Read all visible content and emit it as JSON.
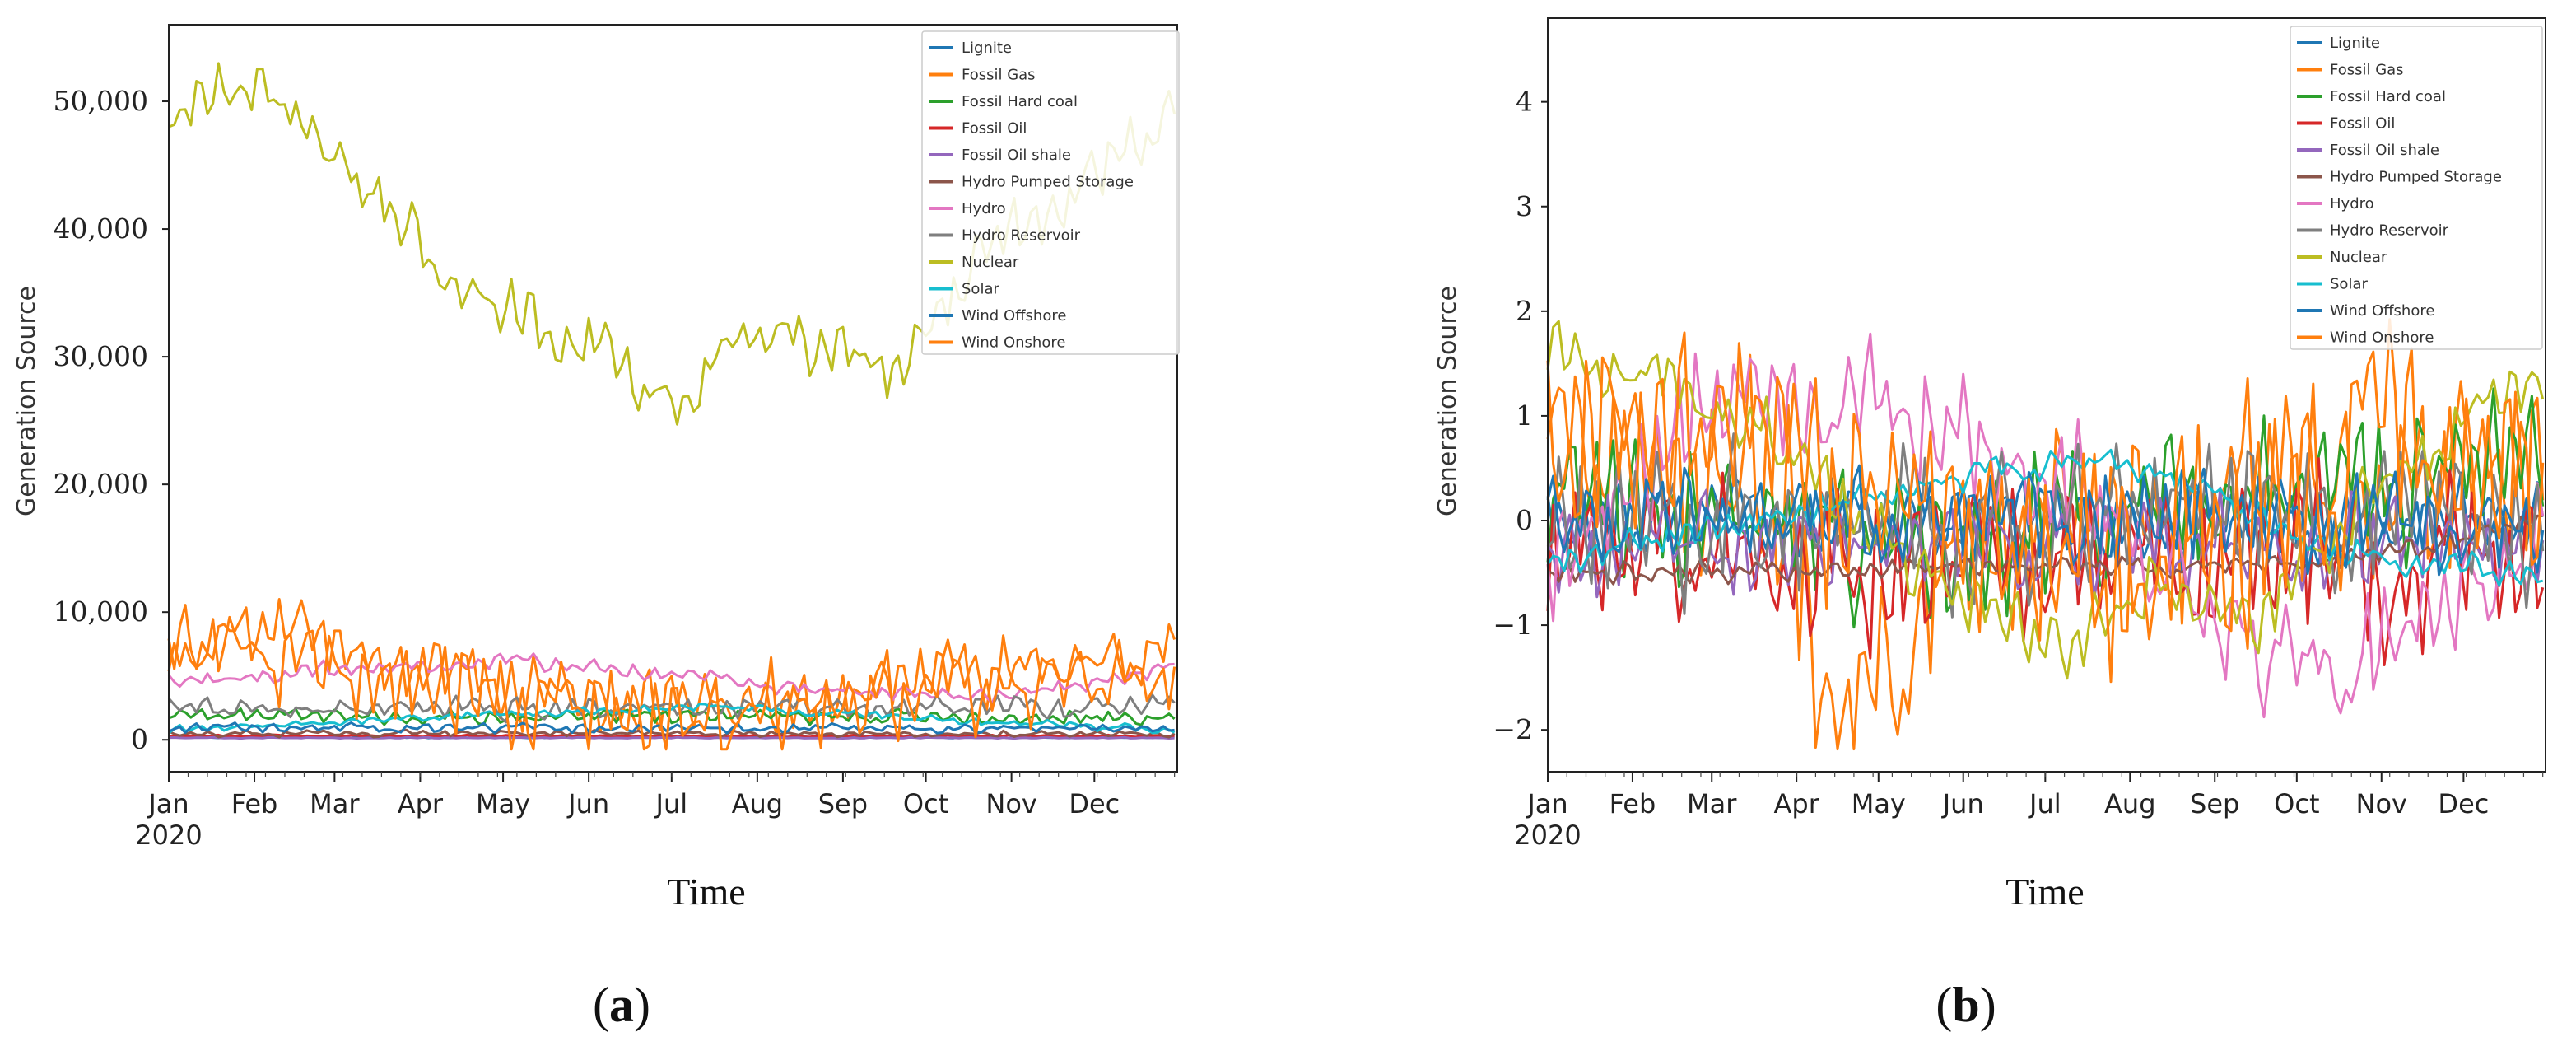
{
  "figure": {
    "panels": [
      {
        "caption_open": "(",
        "caption_letter": "a",
        "caption_close": ")"
      },
      {
        "caption_open": "(",
        "caption_letter": "b",
        "caption_close": ")"
      }
    ]
  },
  "chart_data": [
    {
      "type": "line",
      "panel": "a",
      "title": "",
      "xlabel": "Time",
      "ylabel": "Generation Source",
      "x_ticks": [
        "Jan\n2020",
        "Feb",
        "Mar",
        "Apr",
        "May",
        "Jun",
        "Jul",
        "Aug",
        "Sep",
        "Oct",
        "Nov",
        "Dec"
      ],
      "y_ticks": [
        "0",
        "10,000",
        "20,000",
        "30,000",
        "40,000",
        "50,000"
      ],
      "y_tick_values": [
        0,
        10000,
        20000,
        30000,
        40000,
        50000
      ],
      "xlim": [
        1,
        366
      ],
      "ylim": [
        -2500,
        56000
      ],
      "legend_position": "top-right",
      "series": [
        {
          "name": "Lignite",
          "color": "#1f77b4",
          "base": 200,
          "amp": 60,
          "seed": 1,
          "anchors": []
        },
        {
          "name": "Fossil Gas",
          "color": "#ff7f0e",
          "base": 6000,
          "amp": 2800,
          "seed": 2,
          "anchors": [
            [
              1,
              7500
            ],
            [
              40,
              8500
            ],
            [
              80,
              6000
            ],
            [
              120,
              4500
            ],
            [
              160,
              3200
            ],
            [
              200,
              2800
            ],
            [
              240,
              3500
            ],
            [
              270,
              4800
            ],
            [
              300,
              5500
            ],
            [
              330,
              6000
            ],
            [
              366,
              7200
            ]
          ]
        },
        {
          "name": "Fossil Hard coal",
          "color": "#2ca02c",
          "base": 1800,
          "amp": 600,
          "seed": 3,
          "anchors": []
        },
        {
          "name": "Fossil Oil",
          "color": "#d62728",
          "base": 300,
          "amp": 80,
          "seed": 4,
          "anchors": []
        },
        {
          "name": "Fossil Oil shale",
          "color": "#9467bd",
          "base": 150,
          "amp": 40,
          "seed": 5,
          "anchors": []
        },
        {
          "name": "Hydro Pumped Storage",
          "color": "#8c564b",
          "base": 500,
          "amp": 250,
          "seed": 6,
          "anchors": []
        },
        {
          "name": "Hydro",
          "color": "#e377c2",
          "base": 4500,
          "amp": 600,
          "seed": 7,
          "anchors": [
            [
              1,
              4500
            ],
            [
              60,
              5500
            ],
            [
              120,
              6200
            ],
            [
              150,
              5800
            ],
            [
              200,
              4800
            ],
            [
              240,
              3800
            ],
            [
              300,
              3500
            ],
            [
              340,
              4800
            ],
            [
              366,
              5500
            ]
          ]
        },
        {
          "name": "Hydro Reservoir",
          "color": "#7f7f7f",
          "base": 2500,
          "amp": 900,
          "seed": 8,
          "anchors": []
        },
        {
          "name": "Nuclear",
          "color": "#bcbd22",
          "base": 40000,
          "amp": 2500,
          "seed": 9,
          "anchors": [
            [
              1,
              50000
            ],
            [
              20,
              51500
            ],
            [
              40,
              50000
            ],
            [
              60,
              46000
            ],
            [
              80,
              42000
            ],
            [
              100,
              37000
            ],
            [
              120,
              34000
            ],
            [
              140,
              32500
            ],
            [
              160,
              30000
            ],
            [
              175,
              28000
            ],
            [
              190,
              26000
            ],
            [
              200,
              29000
            ],
            [
              215,
              31500
            ],
            [
              230,
              31500
            ],
            [
              250,
              29500
            ],
            [
              265,
              29000
            ],
            [
              280,
              33000
            ],
            [
              295,
              38000
            ],
            [
              310,
              40000
            ],
            [
              325,
              42500
            ],
            [
              340,
              45000
            ],
            [
              355,
              47500
            ],
            [
              366,
              49500
            ]
          ]
        },
        {
          "name": "Solar",
          "color": "#17becf",
          "base": 1500,
          "amp": 300,
          "seed": 10,
          "anchors": [
            [
              1,
              800
            ],
            [
              120,
              2000
            ],
            [
              200,
              2600
            ],
            [
              280,
              1600
            ],
            [
              366,
              700
            ]
          ]
        },
        {
          "name": "Wind Offshore",
          "color": "#1f77b4",
          "base": 900,
          "amp": 350,
          "seed": 11,
          "anchors": []
        },
        {
          "name": "Wind Onshore",
          "color": "#ff7f0e",
          "base": 5000,
          "amp": 3800,
          "seed": 12,
          "anchors": [
            [
              1,
              6000
            ],
            [
              60,
              5500
            ],
            [
              120,
              3000
            ],
            [
              180,
              2000
            ],
            [
              240,
              2200
            ],
            [
              300,
              4500
            ],
            [
              366,
              6000
            ]
          ]
        }
      ]
    },
    {
      "type": "line",
      "panel": "b",
      "title": "",
      "xlabel": "Time",
      "ylabel": "Generation Source",
      "x_ticks": [
        "Jan\n2020",
        "Feb",
        "Mar",
        "Apr",
        "May",
        "Jun",
        "Jul",
        "Aug",
        "Sep",
        "Oct",
        "Nov",
        "Dec"
      ],
      "y_ticks": [
        "−2",
        "−1",
        "0",
        "1",
        "2",
        "3",
        "4"
      ],
      "y_tick_values": [
        -2,
        -1,
        0,
        1,
        2,
        3,
        4
      ],
      "xlim": [
        1,
        366
      ],
      "ylim": [
        -2.4,
        4.8
      ],
      "legend_position": "top-right",
      "series": [
        {
          "name": "Lignite",
          "color": "#1f77b4",
          "base": 0,
          "amp": 0.4,
          "seed": 21,
          "anchors": []
        },
        {
          "name": "Fossil Gas",
          "color": "#ff7f0e",
          "base": 0.3,
          "amp": 1.0,
          "seed": 22,
          "anchors": [
            [
              1,
              0.5
            ],
            [
              90,
              0.2
            ],
            [
              100,
              -1.45
            ],
            [
              130,
              -1.45
            ],
            [
              140,
              -0.4
            ],
            [
              366,
              0.6
            ]
          ]
        },
        {
          "name": "Fossil Hard coal",
          "color": "#2ca02c",
          "base": -0.3,
          "amp": 0.7,
          "seed": 23,
          "anchors": [
            [
              1,
              0.3
            ],
            [
              120,
              -0.3
            ],
            [
              240,
              0.2
            ],
            [
              366,
              0.5
            ]
          ]
        },
        {
          "name": "Fossil Oil",
          "color": "#d62728",
          "base": -0.4,
          "amp": 0.8,
          "seed": 24,
          "anchors": []
        },
        {
          "name": "Fossil Oil shale",
          "color": "#9467bd",
          "base": -0.2,
          "amp": 0.5,
          "seed": 25,
          "anchors": []
        },
        {
          "name": "Hydro Pumped Storage",
          "color": "#8c564b",
          "base": -0.5,
          "amp": 0.1,
          "seed": 26,
          "anchors": [
            [
              1,
              -0.5
            ],
            [
              300,
              -0.4
            ],
            [
              366,
              0.0
            ]
          ]
        },
        {
          "name": "Hydro",
          "color": "#e377c2",
          "base": 0.0,
          "amp": 0.6,
          "seed": 27,
          "anchors": [
            [
              1,
              -0.4
            ],
            [
              60,
              1.2
            ],
            [
              130,
              1.0
            ],
            [
              200,
              0.2
            ],
            [
              250,
              -1.2
            ],
            [
              290,
              -1.5
            ],
            [
              366,
              0.0
            ]
          ]
        },
        {
          "name": "Hydro Reservoir",
          "color": "#7f7f7f",
          "base": 0.0,
          "amp": 0.7,
          "seed": 28,
          "anchors": []
        },
        {
          "name": "Nuclear",
          "color": "#bcbd22",
          "base": 0.0,
          "amp": 0.35,
          "seed": 29,
          "anchors": [
            [
              1,
              1.6
            ],
            [
              40,
              1.4
            ],
            [
              80,
              0.9
            ],
            [
              120,
              -0.2
            ],
            [
              160,
              -0.7
            ],
            [
              190,
              -1.3
            ],
            [
              220,
              -0.6
            ],
            [
              260,
              -1.0
            ],
            [
              300,
              0.2
            ],
            [
              340,
              1.0
            ],
            [
              366,
              1.4
            ]
          ]
        },
        {
          "name": "Solar",
          "color": "#17becf",
          "base": -0.4,
          "amp": 0.15,
          "seed": 30,
          "anchors": [
            [
              1,
              -0.4
            ],
            [
              100,
              0.1
            ],
            [
              150,
              0.4
            ],
            [
              200,
              0.6
            ],
            [
              240,
              0.3
            ],
            [
              290,
              -0.3
            ],
            [
              366,
              -0.5
            ]
          ]
        },
        {
          "name": "Wind Offshore",
          "color": "#1f77b4",
          "base": 0.0,
          "amp": 0.5,
          "seed": 31,
          "anchors": []
        },
        {
          "name": "Wind Onshore",
          "color": "#ff7f0e",
          "base": 0.3,
          "amp": 1.0,
          "seed": 32,
          "anchors": [
            [
              1,
              0.8
            ],
            [
              60,
              0.9
            ],
            [
              120,
              0.0
            ],
            [
              180,
              -0.5
            ],
            [
              240,
              -0.3
            ],
            [
              300,
              0.8
            ],
            [
              366,
              0.6
            ]
          ]
        }
      ]
    }
  ]
}
